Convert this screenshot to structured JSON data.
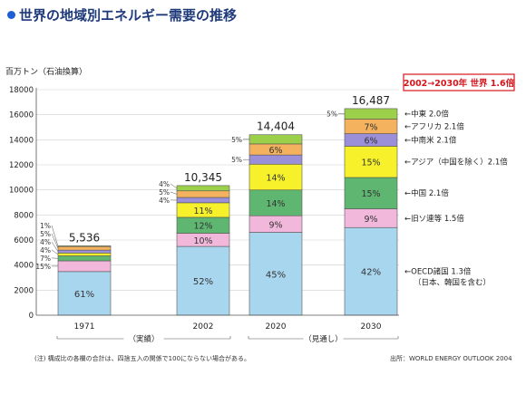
{
  "title": "世界の地域別エネルギー需要の推移",
  "highlight": "2002→2030年 世界 1.6倍",
  "footnote": "(注) 構成比の各欄の合計は、四捨五入の関係で100にならない場合がある。",
  "source": "出所：WORLD ENERGY OUTLOOK 2004",
  "chart_data": {
    "type": "bar",
    "stacked": true,
    "ylabel": "百万トン（石油換算）",
    "ylim": [
      0,
      18000
    ],
    "yticks": [
      0,
      2000,
      4000,
      6000,
      8000,
      10000,
      12000,
      14000,
      16000,
      18000
    ],
    "categories": [
      "1971",
      "2002",
      "2020",
      "2030"
    ],
    "totals": [
      5536,
      10345,
      14404,
      16487
    ],
    "total_labels": [
      "5,536",
      "10,345",
      "14,404",
      "16,487"
    ],
    "period_labels": [
      {
        "label": "（実績）",
        "categories": [
          "1971",
          "2002"
        ]
      },
      {
        "label": "（見通し）",
        "categories": [
          "2020",
          "2030"
        ]
      }
    ],
    "series": [
      {
        "name": "OECD諸国 1.3倍",
        "sub": "（日本、韓国を含む）",
        "color": "#a9d6ef",
        "shares": [
          61,
          52,
          45,
          42
        ]
      },
      {
        "name": "旧ソ連等 1.5倍",
        "color": "#f2b8dc",
        "shares": [
          15,
          10,
          9,
          9
        ]
      },
      {
        "name": "中国 2.1倍",
        "color": "#5eb670",
        "shares": [
          7,
          12,
          14,
          15
        ]
      },
      {
        "name": "アジア（中国を除く）2.1倍",
        "color": "#f6f12a",
        "shares": [
          4,
          11,
          14,
          15
        ]
      },
      {
        "name": "中南米 2.1倍",
        "color": "#9a8fd8",
        "shares": [
          4,
          4,
          5,
          6
        ]
      },
      {
        "name": "アフリカ 2.1倍",
        "color": "#f5b25e",
        "shares": [
          5,
          5,
          6,
          7
        ]
      },
      {
        "name": "中東 2.0倍",
        "color": "#9ccf4a",
        "shares": [
          1,
          4,
          5,
          5
        ]
      }
    ]
  },
  "colors": {
    "title": "#1f3a7a",
    "highlight": "#d4161c"
  }
}
